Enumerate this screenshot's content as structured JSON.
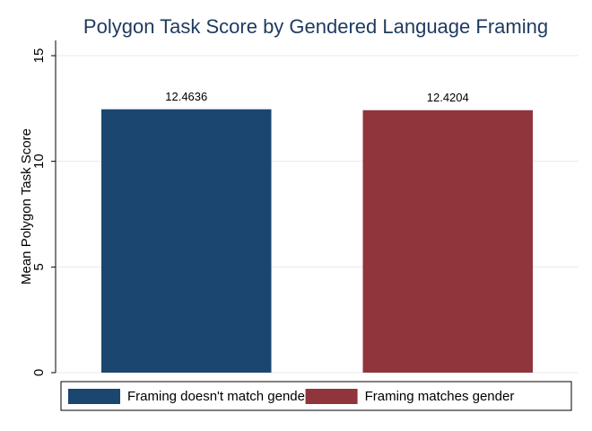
{
  "chart_data": {
    "type": "bar",
    "title": "Polygon Task Score by Gendered Language Framing",
    "y_label": "Mean Polygon Task Score",
    "series": [
      {
        "name": "Framing doesn't match gender",
        "color": "#1a4670",
        "values": [
          12.4636
        ]
      },
      {
        "name": "Framing matches gender",
        "color": "#90353b",
        "values": [
          12.4204
        ]
      }
    ],
    "ylim": [
      0,
      15
    ],
    "yticks": [
      0,
      5,
      10,
      15
    ],
    "grid": true,
    "legend": "bottom"
  }
}
